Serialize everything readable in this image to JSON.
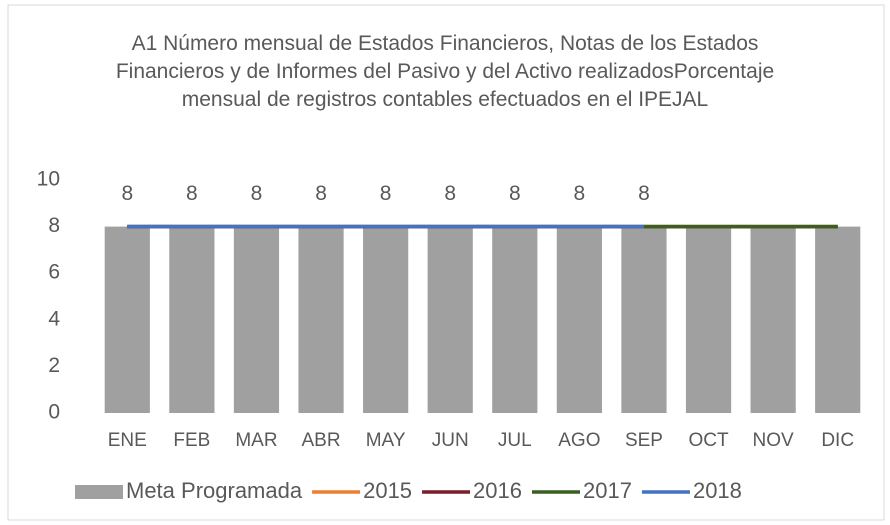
{
  "chart_data": {
    "type": "combo",
    "title": "A1 Número mensual de Estados Financieros,  Notas de los Estados Financieros y de Informes del Pasivo y del Activo realizadosPorcentaje mensual de registros contables efectuados en el IPEJAL",
    "categories": [
      "ENE",
      "FEB",
      "MAR",
      "ABR",
      "MAY",
      "JUN",
      "JUL",
      "AGO",
      "SEP",
      "OCT",
      "NOV",
      "DIC"
    ],
    "series": [
      {
        "name": "Meta Programada",
        "type": "bar",
        "color": "#a0a0a0",
        "values": [
          8,
          8,
          8,
          8,
          8,
          8,
          8,
          8,
          8,
          8,
          8,
          8
        ]
      },
      {
        "name": "2015",
        "type": "line",
        "color": "#ed7d31",
        "values": [
          8,
          8,
          8,
          8,
          8,
          8,
          8,
          8,
          8,
          8,
          8,
          8
        ]
      },
      {
        "name": "2016",
        "type": "line",
        "color": "#7b1c2c",
        "values": [
          8,
          8,
          8,
          8,
          8,
          8,
          8,
          8,
          8,
          8,
          8,
          8
        ]
      },
      {
        "name": "2017",
        "type": "line",
        "color": "#3a5f1f",
        "values": [
          8,
          8,
          8,
          8,
          8,
          8,
          8,
          8,
          8,
          8,
          8,
          8
        ]
      },
      {
        "name": "2018",
        "type": "line",
        "color": "#4472c4",
        "data_labels": true,
        "values": [
          8,
          8,
          8,
          8,
          8,
          8,
          8,
          8,
          8,
          null,
          null,
          null
        ]
      }
    ],
    "ylim": [
      0,
      10
    ],
    "yticks": [
      0,
      2,
      4,
      6,
      8,
      10
    ],
    "grid": false,
    "legend": "bottom"
  }
}
